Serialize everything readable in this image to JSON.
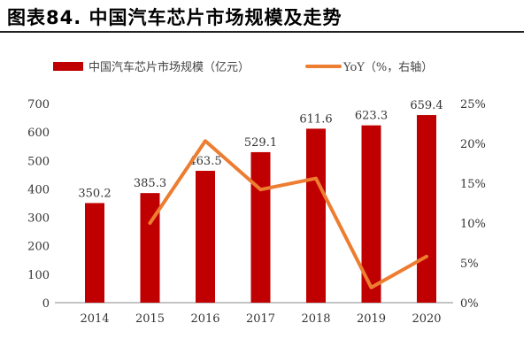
{
  "title": "图表84. 中国汽车芯片市场规模及走势",
  "chart_data": {
    "type": "bar+line",
    "categories": [
      "2014",
      "2015",
      "2016",
      "2017",
      "2018",
      "2019",
      "2020"
    ],
    "series": [
      {
        "name": "中国汽车芯片市场规模（亿元）",
        "type": "bar",
        "axis": "left",
        "color": "#C00000",
        "values": [
          350.2,
          385.3,
          463.5,
          529.1,
          611.6,
          623.3,
          659.4
        ],
        "labels": [
          "350.2",
          "385.3",
          "463.5",
          "529.1",
          "611.6",
          "623.3",
          "659.4"
        ]
      },
      {
        "name": "YoY（%，右轴）",
        "type": "line",
        "axis": "right",
        "color": "#ED7D31",
        "values": [
          null,
          10.0,
          20.3,
          14.2,
          15.6,
          1.9,
          5.8
        ]
      }
    ],
    "left_axis": {
      "range": [
        0,
        700
      ],
      "ticks": [
        "0",
        "100",
        "200",
        "300",
        "400",
        "500",
        "600",
        "700"
      ]
    },
    "right_axis": {
      "range": [
        0,
        25
      ],
      "ticks": [
        "0%",
        "5%",
        "10%",
        "15%",
        "20%",
        "25%"
      ]
    },
    "legend": "top",
    "grid": false
  }
}
